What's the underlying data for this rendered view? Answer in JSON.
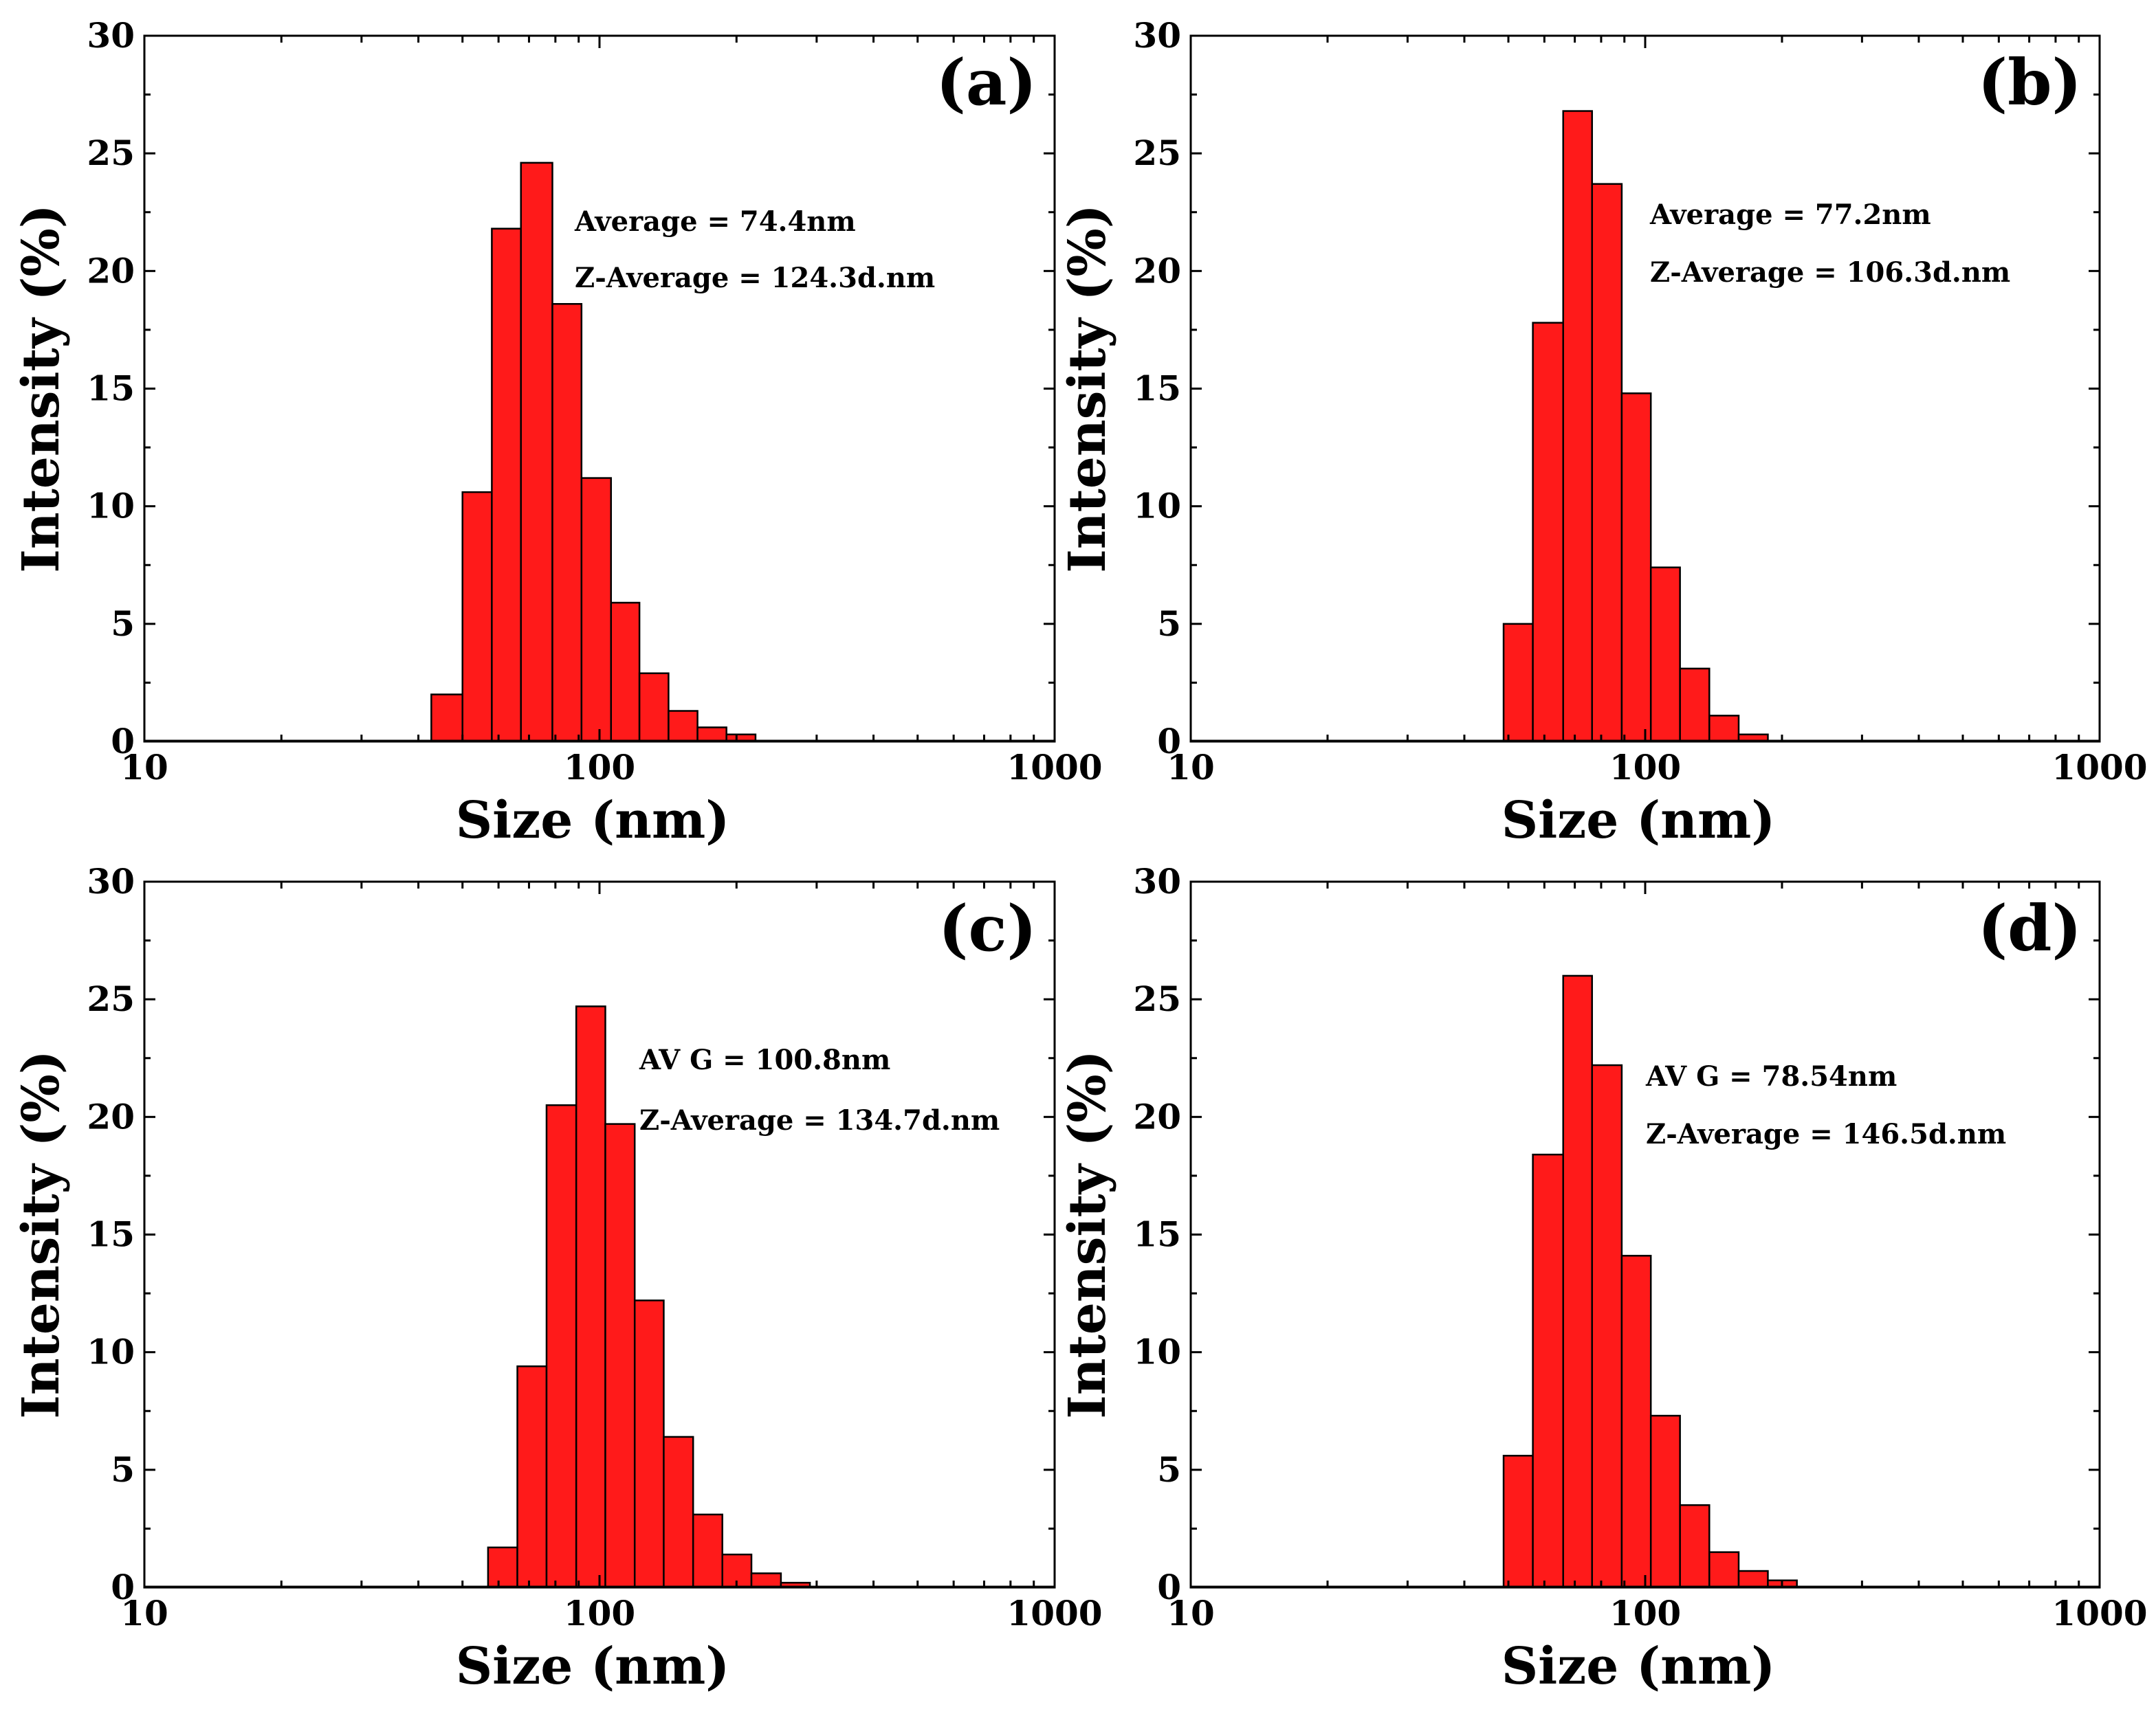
{
  "chart_data": [
    {
      "type": "bar",
      "panel": "(a)",
      "xlabel": "Size (nm)",
      "ylabel": "Intensity (%)",
      "xscale": "log",
      "xlim": [
        10,
        1000
      ],
      "ylim": [
        0,
        30
      ],
      "x_ticks": [
        10,
        100,
        1000
      ],
      "x_tick_labels": [
        "10",
        "100",
        "1000"
      ],
      "y_ticks": [
        0,
        5,
        10,
        15,
        20,
        25,
        30
      ],
      "y_tick_labels": [
        "0",
        "5",
        "10",
        "15",
        "20",
        "25",
        "30"
      ],
      "annotations": [
        "Average = 74.4nm",
        "Z-Average = 124.3d.nm"
      ],
      "bin_edges": [
        42.7,
        50.0,
        58.0,
        67.2,
        78.8,
        91.3,
        106.0,
        122.4,
        141.8,
        164.2,
        190.1,
        220.2
      ],
      "values": [
        2.0,
        10.6,
        21.8,
        24.6,
        18.6,
        11.2,
        5.9,
        2.9,
        1.3,
        0.6,
        0.3
      ]
    },
    {
      "type": "bar",
      "panel": "(b)",
      "xlabel": "Size (nm)",
      "ylabel": "Intensity (%)",
      "xscale": "log",
      "xlim": [
        10,
        1000
      ],
      "ylim": [
        0,
        30
      ],
      "x_ticks": [
        10,
        100,
        1000
      ],
      "x_tick_labels": [
        "10",
        "100",
        "1000"
      ],
      "y_ticks": [
        0,
        5,
        10,
        15,
        20,
        25,
        30
      ],
      "y_tick_labels": [
        "0",
        "5",
        "10",
        "15",
        "20",
        "25",
        "30"
      ],
      "annotations": [
        "Average = 77.2nm",
        "Z-Average = 106.3d.nm"
      ],
      "bin_edges": [
        48.8,
        56.6,
        66.0,
        76.4,
        88.8,
        102.9,
        119.3,
        138.4,
        160.6,
        186.2
      ],
      "values": [
        5.0,
        17.8,
        26.8,
        23.7,
        14.8,
        7.4,
        3.1,
        1.1,
        0.3
      ]
    },
    {
      "type": "bar",
      "panel": "(c)",
      "xlabel": "Size (nm)",
      "ylabel": "Intensity (%)",
      "xscale": "log",
      "xlim": [
        10,
        1000
      ],
      "ylim": [
        0,
        30
      ],
      "x_ticks": [
        10,
        100,
        1000
      ],
      "x_tick_labels": [
        "10",
        "100",
        "1000"
      ],
      "y_ticks": [
        0,
        5,
        10,
        15,
        20,
        25,
        30
      ],
      "y_tick_labels": [
        "0",
        "5",
        "10",
        "15",
        "20",
        "25",
        "30"
      ],
      "annotations": [
        "AV G = 100.8nm",
        "Z-Average = 134.7d.nm"
      ],
      "bin_edges": [
        56.9,
        66.0,
        76.5,
        88.9,
        103.0,
        119.5,
        138.4,
        160.6,
        186.2,
        215.7,
        250.4,
        290.0
      ],
      "values": [
        1.7,
        9.4,
        20.5,
        24.7,
        19.7,
        12.2,
        6.4,
        3.1,
        1.4,
        0.6,
        0.2
      ]
    },
    {
      "type": "bar",
      "panel": "(d)",
      "xlabel": "Size (nm)",
      "ylabel": "Intensity (%)",
      "xscale": "log",
      "xlim": [
        10,
        1000
      ],
      "ylim": [
        0,
        30
      ],
      "x_ticks": [
        10,
        100,
        1000
      ],
      "x_tick_labels": [
        "10",
        "100",
        "1000"
      ],
      "y_ticks": [
        0,
        5,
        10,
        15,
        20,
        25,
        30
      ],
      "y_tick_labels": [
        "0",
        "5",
        "10",
        "15",
        "20",
        "25",
        "30"
      ],
      "annotations": [
        "AV G = 78.54nm",
        "Z-Average = 146.5d.nm"
      ],
      "bin_edges": [
        48.8,
        56.6,
        66.0,
        76.4,
        88.8,
        102.9,
        119.3,
        138.4,
        160.6,
        186.2,
        215.7
      ],
      "values": [
        5.6,
        18.4,
        26.0,
        22.2,
        14.1,
        7.3,
        3.5,
        1.5,
        0.7,
        0.3
      ]
    }
  ]
}
